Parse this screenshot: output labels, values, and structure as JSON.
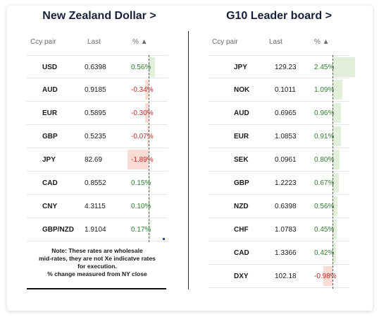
{
  "left": {
    "title": "New Zealand Dollar >",
    "headers": {
      "pair": "Ccy pair",
      "last": "Last",
      "pct": "% ▲"
    },
    "rows": [
      {
        "pair": "USD",
        "last": "0.6398",
        "pct": "0.56%",
        "value": 0.56
      },
      {
        "pair": "AUD",
        "last": "0.9185",
        "pct": "-0.34%",
        "value": -0.34
      },
      {
        "pair": "EUR",
        "last": "0.5895",
        "pct": "-0.30%",
        "value": -0.3
      },
      {
        "pair": "GBP",
        "last": "0.5235",
        "pct": "-0.07%",
        "value": -0.07
      },
      {
        "pair": "JPY",
        "last": "82.69",
        "pct": "-1.89%",
        "value": -1.89
      },
      {
        "pair": "CAD",
        "last": "0.8552",
        "pct": "0.15%",
        "value": 0.15
      },
      {
        "pair": "CNY",
        "last": "4.3115",
        "pct": "0.10%",
        "value": 0.1
      },
      {
        "pair": "GBP/NZD",
        "last": "1.9104",
        "pct": "0.17%",
        "value": 0.17
      }
    ],
    "note": [
      "Note: These rates are wholesale",
      "mid-rates, they are not Xe indicatve rates",
      "for execution.",
      "% change measured from NY close"
    ]
  },
  "right": {
    "title": "G10 Leader board >",
    "headers": {
      "pair": "Ccy pair",
      "last": "Last",
      "pct": "% ▲"
    },
    "rows": [
      {
        "pair": "JPY",
        "last": "129.23",
        "pct": "2.45%",
        "value": 2.45
      },
      {
        "pair": "NOK",
        "last": "0.1011",
        "pct": "1.09%",
        "value": 1.09
      },
      {
        "pair": "AUD",
        "last": "0.6965",
        "pct": "0.96%",
        "value": 0.96
      },
      {
        "pair": "EUR",
        "last": "1.0853",
        "pct": "0.91%",
        "value": 0.91
      },
      {
        "pair": "SEK",
        "last": "0.0961",
        "pct": "0.80%",
        "value": 0.8
      },
      {
        "pair": "GBP",
        "last": "1.2223",
        "pct": "0.67%",
        "value": 0.67
      },
      {
        "pair": "NZD",
        "last": "0.6398",
        "pct": "0.56%",
        "value": 0.56
      },
      {
        "pair": "CHF",
        "last": "1.0783",
        "pct": "0.45%",
        "value": 0.45
      },
      {
        "pair": "CAD",
        "last": "1.3366",
        "pct": "0.42%",
        "value": 0.42
      },
      {
        "pair": "DXY",
        "last": "102.18",
        "pct": "-0.98%",
        "value": -0.98
      }
    ]
  },
  "colors": {
    "positive_text": "#2f7d2f",
    "negative_text": "#c52828",
    "positive_bar": "#e2f0da",
    "negative_bar": "#fbdcd4",
    "title": "#1a1f3a"
  }
}
